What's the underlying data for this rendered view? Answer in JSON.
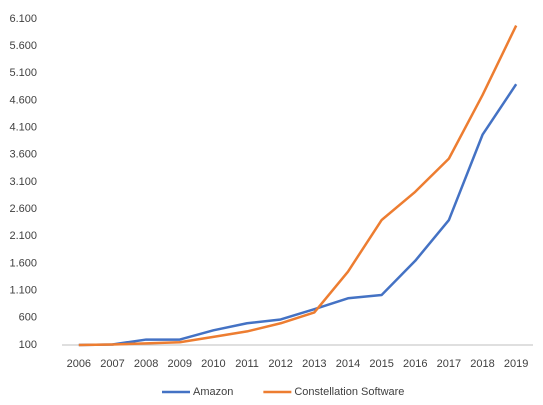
{
  "chart_data": {
    "type": "line",
    "categories": [
      "2006",
      "2007",
      "2008",
      "2009",
      "2010",
      "2011",
      "2012",
      "2013",
      "2014",
      "2015",
      "2016",
      "2017",
      "2018",
      "2019"
    ],
    "series": [
      {
        "name": "Amazon",
        "color": "#4472c4",
        "values": [
          100,
          110,
          200,
          200,
          370,
          500,
          570,
          760,
          960,
          1020,
          1650,
          2400,
          3970,
          4900
        ]
      },
      {
        "name": "Constellation Software",
        "color": "#ed7d31",
        "values": [
          100,
          110,
          130,
          150,
          250,
          350,
          500,
          700,
          1450,
          2400,
          2920,
          3530,
          4700,
          5980
        ]
      }
    ],
    "ylim": [
      100,
      6100
    ],
    "yticks": [
      100,
      600,
      {
        "value": 1100,
        "label": "1.100"
      },
      {
        "value": 1600,
        "label": "1.600"
      },
      {
        "value": 2100,
        "label": "2.100"
      },
      {
        "value": 2600,
        "label": "2.600"
      },
      {
        "value": 3100,
        "label": "3.100"
      },
      {
        "value": 3600,
        "label": "3.600"
      },
      {
        "value": 4100,
        "label": "4.100"
      },
      {
        "value": 4600,
        "label": "4.600"
      },
      {
        "value": 5100,
        "label": "5.100"
      },
      {
        "value": 5600,
        "label": "5.600"
      },
      {
        "value": 6100,
        "label": "6.100"
      }
    ],
    "grid": false,
    "legend": "bottom"
  }
}
